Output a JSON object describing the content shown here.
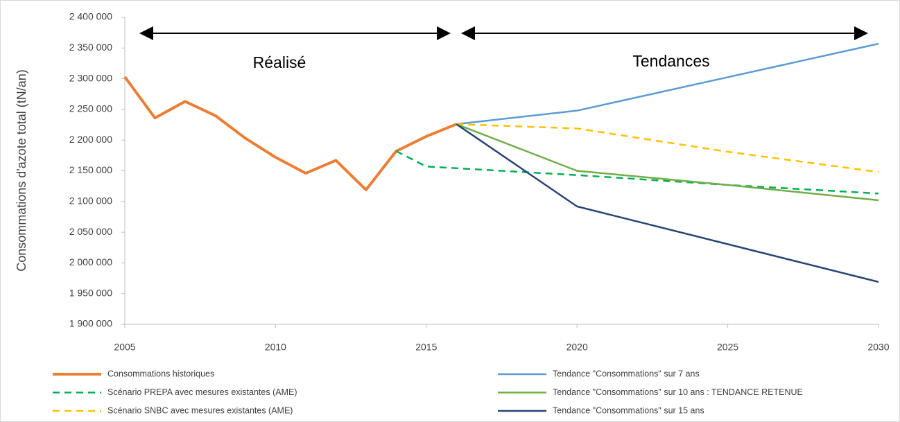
{
  "chart_data": {
    "type": "line",
    "y_label": "Consommations d'azote total (tN/an)",
    "annotations": [
      "Réalisé",
      "Tendances"
    ],
    "xlim": [
      2005,
      2030
    ],
    "xticks": [
      2005,
      2010,
      2015,
      2020,
      2025,
      2030
    ],
    "ylim": [
      1900000,
      2400000
    ],
    "yticks": [
      {
        "value": 1900000,
        "label": "1 900 000"
      },
      {
        "value": 1950000,
        "label": "1 950 000"
      },
      {
        "value": 2000000,
        "label": "2 000 000"
      },
      {
        "value": 2050000,
        "label": "2 050 000"
      },
      {
        "value": 2100000,
        "label": "2 100 000"
      },
      {
        "value": 2150000,
        "label": "2 150 000"
      },
      {
        "value": 2200000,
        "label": "2 200 000"
      },
      {
        "value": 2250000,
        "label": "2 250 000"
      },
      {
        "value": 2300000,
        "label": "2 300 000"
      },
      {
        "value": 2350000,
        "label": "2 350 000"
      },
      {
        "value": 2400000,
        "label": "2 400 000"
      }
    ],
    "legend": "bottom",
    "series": [
      {
        "name": "Consommations historiques",
        "color": "#ed7d31",
        "dashed": false,
        "width": 4,
        "x": [
          2005,
          2006,
          2007,
          2008,
          2009,
          2010,
          2011,
          2012,
          2013,
          2014,
          2015,
          2016
        ],
        "values": [
          2303000,
          2236000,
          2263000,
          2240000,
          2203000,
          2172000,
          2146000,
          2167000,
          2119000,
          2182000,
          2206000,
          2226000
        ]
      },
      {
        "name": "Tendance \"Consommations\" sur 7 ans",
        "color": "#5b9bd5",
        "dashed": false,
        "width": 2.5,
        "x": [
          2016,
          2020,
          2030
        ],
        "values": [
          2226000,
          2248000,
          2357000
        ]
      },
      {
        "name": "Scénario PREPA avec mesures existantes (AME)",
        "color": "#00b050",
        "dashed": true,
        "width": 2.5,
        "x": [
          2014,
          2015,
          2020,
          2025,
          2030
        ],
        "values": [
          2182000,
          2157000,
          2143000,
          2127000,
          2113000
        ]
      },
      {
        "name": "Tendance \"Consommations\" sur 10 ans : TENDANCE RETENUE",
        "color": "#70ad47",
        "dashed": false,
        "width": 2.5,
        "x": [
          2016,
          2020,
          2025,
          2030
        ],
        "values": [
          2226000,
          2150000,
          2127000,
          2102000
        ]
      },
      {
        "name": "Scénario SNBC avec mesures existantes (AME)",
        "color": "#ffc000",
        "dashed": true,
        "width": 2.5,
        "x": [
          2016,
          2020,
          2025,
          2030
        ],
        "values": [
          2226000,
          2219000,
          2181000,
          2148000
        ]
      },
      {
        "name": "Tendance \"Consommations\" sur 15 ans",
        "color": "#264478",
        "dashed": false,
        "width": 2.5,
        "x": [
          2016,
          2020,
          2030
        ],
        "values": [
          2226000,
          2092000,
          1969000
        ]
      }
    ]
  }
}
